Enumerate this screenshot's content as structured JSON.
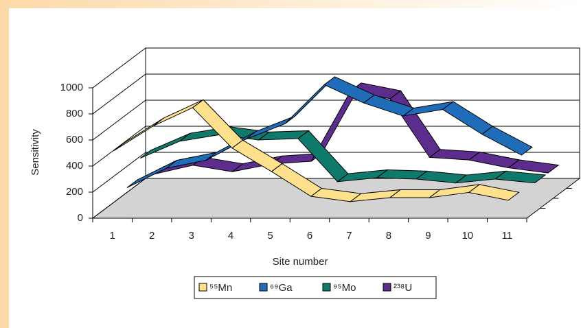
{
  "chart_data": {
    "type": "line",
    "xlabel": "Site number",
    "ylabel": "Sensitivity",
    "categories": [
      "1",
      "2",
      "3",
      "4",
      "5",
      "6",
      "7",
      "8",
      "9",
      "10",
      "11"
    ],
    "series": [
      {
        "name": "⁵⁵Mn",
        "color": "#FFE08C",
        "values": [
          510,
          700,
          840,
          530,
          350,
          160,
          120,
          150,
          150,
          190,
          130
        ]
      },
      {
        "name": "⁶⁹Ga",
        "color": "#1F6CB8",
        "values": [
          150,
          300,
          360,
          520,
          640,
          940,
          800,
          700,
          750,
          560,
          400
        ]
      },
      {
        "name": "⁹⁵Mo",
        "color": "#0F7A6C",
        "values": [
          300,
          430,
          480,
          440,
          450,
          120,
          150,
          140,
          110,
          140,
          110
        ]
      },
      {
        "name": "²³⁸U",
        "color": "#5C2D8C",
        "values": [
          100,
          170,
          120,
          180,
          200,
          740,
          680,
          230,
          210,
          150,
          110
        ]
      }
    ],
    "ylim": [
      0,
      1000
    ],
    "yticks": [
      0,
      200,
      400,
      600,
      800,
      1000
    ],
    "grid": true
  }
}
